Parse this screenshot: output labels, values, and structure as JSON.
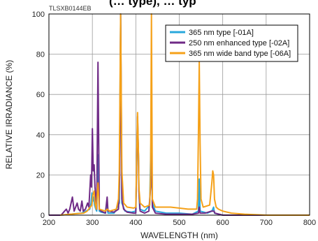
{
  "chart_data": {
    "type": "line",
    "title": "(… type), … typ",
    "figure_code": "TLSXB0144EB",
    "xlabel": "WAVELENGTH (nm)",
    "ylabel": "RELATIVE IRRADIANCE (%)",
    "xlim": [
      200,
      800
    ],
    "ylim": [
      0,
      100
    ],
    "xticks": [
      "200",
      "300",
      "400",
      "500",
      "600",
      "700",
      "800"
    ],
    "yticks": [
      "0",
      "20",
      "40",
      "60",
      "80",
      "100"
    ],
    "grid": true,
    "legend_position": "top-right",
    "series": [
      {
        "name": "365 nm type [-01A]",
        "color": "#29a8dc",
        "points": [
          [
            228,
            0
          ],
          [
            250,
            0.5
          ],
          [
            275,
            1
          ],
          [
            285,
            2
          ],
          [
            290,
            2.5
          ],
          [
            294,
            3
          ],
          [
            297,
            6
          ],
          [
            299,
            11
          ],
          [
            301,
            7
          ],
          [
            303,
            9
          ],
          [
            305,
            5
          ],
          [
            308,
            3
          ],
          [
            310,
            2
          ],
          [
            313,
            30
          ],
          [
            316,
            2
          ],
          [
            320,
            1.5
          ],
          [
            330,
            1
          ],
          [
            334,
            5
          ],
          [
            336,
            1
          ],
          [
            350,
            1
          ],
          [
            362,
            6
          ],
          [
            365,
            100
          ],
          [
            368,
            6
          ],
          [
            375,
            2
          ],
          [
            390,
            1.5
          ],
          [
            400,
            2
          ],
          [
            404,
            47
          ],
          [
            406,
            30
          ],
          [
            407,
            14
          ],
          [
            409,
            3
          ],
          [
            420,
            2
          ],
          [
            432,
            5
          ],
          [
            436,
            48
          ],
          [
            438,
            6
          ],
          [
            445,
            2
          ],
          [
            470,
            1
          ],
          [
            500,
            1
          ],
          [
            530,
            0.5
          ],
          [
            544,
            2
          ],
          [
            546,
            18
          ],
          [
            548,
            2
          ],
          [
            565,
            1
          ],
          [
            575,
            2
          ],
          [
            577,
            3
          ],
          [
            579,
            4
          ],
          [
            581,
            1
          ],
          [
            600,
            0
          ],
          [
            800,
            0
          ]
        ]
      },
      {
        "name": "250 nm enhanced type [-02A]",
        "color": "#6f2a86",
        "points": [
          [
            200,
            0
          ],
          [
            228,
            0
          ],
          [
            236,
            2
          ],
          [
            240,
            3
          ],
          [
            244,
            1
          ],
          [
            248,
            3
          ],
          [
            254,
            9
          ],
          [
            258,
            2
          ],
          [
            265,
            6
          ],
          [
            268,
            3
          ],
          [
            272,
            2
          ],
          [
            276,
            7
          ],
          [
            279,
            2
          ],
          [
            284,
            3
          ],
          [
            289,
            6
          ],
          [
            292,
            4
          ],
          [
            296,
            20
          ],
          [
            298,
            14
          ],
          [
            300,
            43
          ],
          [
            302,
            22
          ],
          [
            304,
            25
          ],
          [
            306,
            14
          ],
          [
            308,
            9
          ],
          [
            310,
            3
          ],
          [
            313,
            76
          ],
          [
            316,
            3
          ],
          [
            320,
            2
          ],
          [
            330,
            1
          ],
          [
            334,
            9
          ],
          [
            336,
            2
          ],
          [
            350,
            1.5
          ],
          [
            360,
            3
          ],
          [
            363,
            20
          ],
          [
            365,
            100
          ],
          [
            368,
            8
          ],
          [
            372,
            3
          ],
          [
            380,
            1.5
          ],
          [
            395,
            1
          ],
          [
            400,
            1
          ],
          [
            404,
            49
          ],
          [
            406,
            30
          ],
          [
            407,
            12
          ],
          [
            410,
            2
          ],
          [
            420,
            1
          ],
          [
            430,
            2
          ],
          [
            434,
            14
          ],
          [
            436,
            51
          ],
          [
            438,
            4
          ],
          [
            445,
            1
          ],
          [
            470,
            0.5
          ],
          [
            500,
            0.5
          ],
          [
            530,
            0.5
          ],
          [
            544,
            1
          ],
          [
            546,
            4
          ],
          [
            548,
            1
          ],
          [
            560,
            1
          ],
          [
            574,
            2
          ],
          [
            577,
            2
          ],
          [
            580,
            2
          ],
          [
            582,
            1
          ],
          [
            600,
            0
          ],
          [
            800,
            0
          ]
        ]
      },
      {
        "name": "365 nm wide band type [-06A]",
        "color": "#f5a119",
        "points": [
          [
            226,
            0
          ],
          [
            250,
            0.5
          ],
          [
            280,
            1
          ],
          [
            288,
            2
          ],
          [
            295,
            4
          ],
          [
            299,
            5
          ],
          [
            301,
            10
          ],
          [
            304,
            12
          ],
          [
            306,
            6
          ],
          [
            309,
            3
          ],
          [
            313,
            16
          ],
          [
            316,
            3
          ],
          [
            330,
            2
          ],
          [
            334,
            3
          ],
          [
            340,
            2
          ],
          [
            355,
            3
          ],
          [
            360,
            8
          ],
          [
            362,
            22
          ],
          [
            365,
            100
          ],
          [
            368,
            22
          ],
          [
            372,
            6
          ],
          [
            380,
            4
          ],
          [
            395,
            3.5
          ],
          [
            400,
            4
          ],
          [
            404,
            51
          ],
          [
            406,
            31
          ],
          [
            407,
            14
          ],
          [
            410,
            6
          ],
          [
            420,
            4
          ],
          [
            432,
            5
          ],
          [
            434,
            20
          ],
          [
            436,
            100
          ],
          [
            438,
            8
          ],
          [
            445,
            4
          ],
          [
            460,
            4
          ],
          [
            480,
            4
          ],
          [
            500,
            3.5
          ],
          [
            520,
            3
          ],
          [
            540,
            3
          ],
          [
            542,
            8
          ],
          [
            544,
            40
          ],
          [
            546,
            76
          ],
          [
            548,
            36
          ],
          [
            550,
            8
          ],
          [
            555,
            4
          ],
          [
            570,
            5
          ],
          [
            575,
            16
          ],
          [
            577,
            22
          ],
          [
            579,
            20
          ],
          [
            581,
            8
          ],
          [
            585,
            4
          ],
          [
            590,
            3
          ],
          [
            600,
            2
          ],
          [
            620,
            1
          ],
          [
            650,
            0.5
          ],
          [
            700,
            0
          ],
          [
            800,
            0
          ]
        ]
      }
    ]
  }
}
